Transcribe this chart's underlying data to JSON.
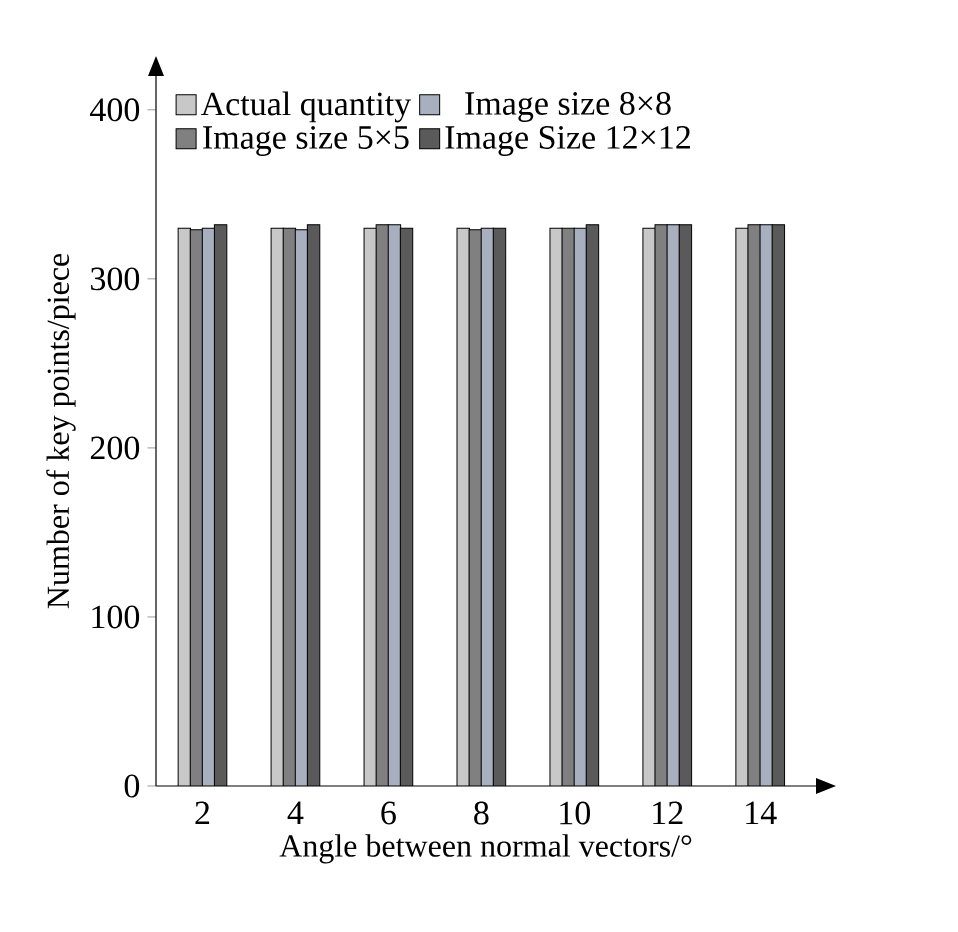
{
  "chart_data": {
    "type": "bar",
    "xlabel": "Angle between normal vectors/°",
    "ylabel": "Number of key points/piece",
    "categories": [
      "2",
      "4",
      "6",
      "8",
      "10",
      "12",
      "14"
    ],
    "series": [
      {
        "name": "Actual quantity",
        "color": "#c8c8c8",
        "values": [
          330,
          330,
          330,
          330,
          330,
          330,
          330
        ]
      },
      {
        "name": "Image size 5×5",
        "color": "#808080",
        "values": [
          329,
          330,
          332,
          329,
          330,
          332,
          332
        ]
      },
      {
        "name": "Image size 8×8",
        "color": "#a8b0c0",
        "values": [
          330,
          329,
          332,
          330,
          330,
          332,
          332
        ]
      },
      {
        "name": "Image Size 12×12",
        "color": "#5a5a5a",
        "values": [
          332,
          332,
          330,
          330,
          332,
          332,
          332
        ]
      }
    ],
    "ylim": [
      0,
      420
    ],
    "yticks": [
      0,
      100,
      200,
      300,
      400
    ],
    "legend": "top left",
    "grid": false
  }
}
